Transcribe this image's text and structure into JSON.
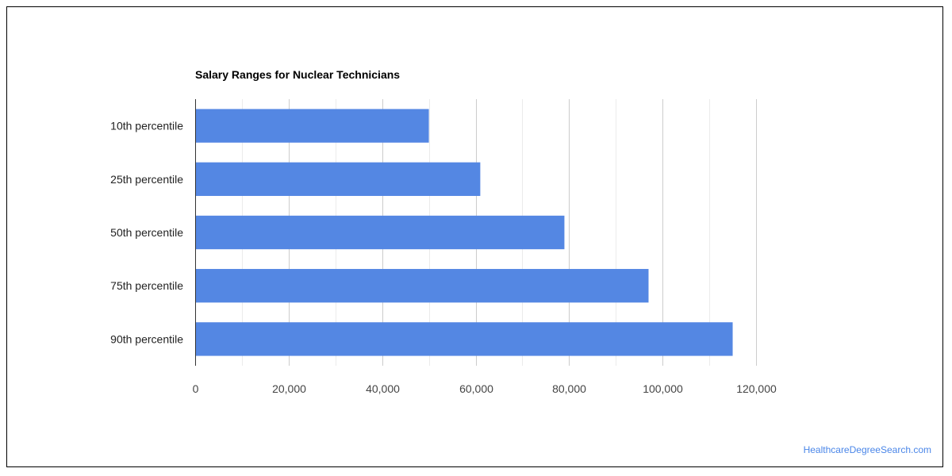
{
  "chart_data": {
    "type": "bar",
    "orientation": "horizontal",
    "title": "Salary Ranges for Nuclear Technicians",
    "categories": [
      "10th percentile",
      "25th percentile",
      "50th percentile",
      "75th percentile",
      "90th percentile"
    ],
    "values": [
      50000,
      61000,
      79000,
      97000,
      115000
    ],
    "xlim": [
      0,
      120000
    ],
    "xticks": [
      0,
      20000,
      40000,
      60000,
      80000,
      100000,
      120000
    ],
    "xtick_labels": [
      "0",
      "20,000",
      "40,000",
      "60,000",
      "80,000",
      "100,000",
      "120,000"
    ],
    "grid": true,
    "legend": "none",
    "bar_color": "#5487e3"
  },
  "source": {
    "label": "HealthcareDegreeSearch.com",
    "color": "#4a86e8"
  }
}
